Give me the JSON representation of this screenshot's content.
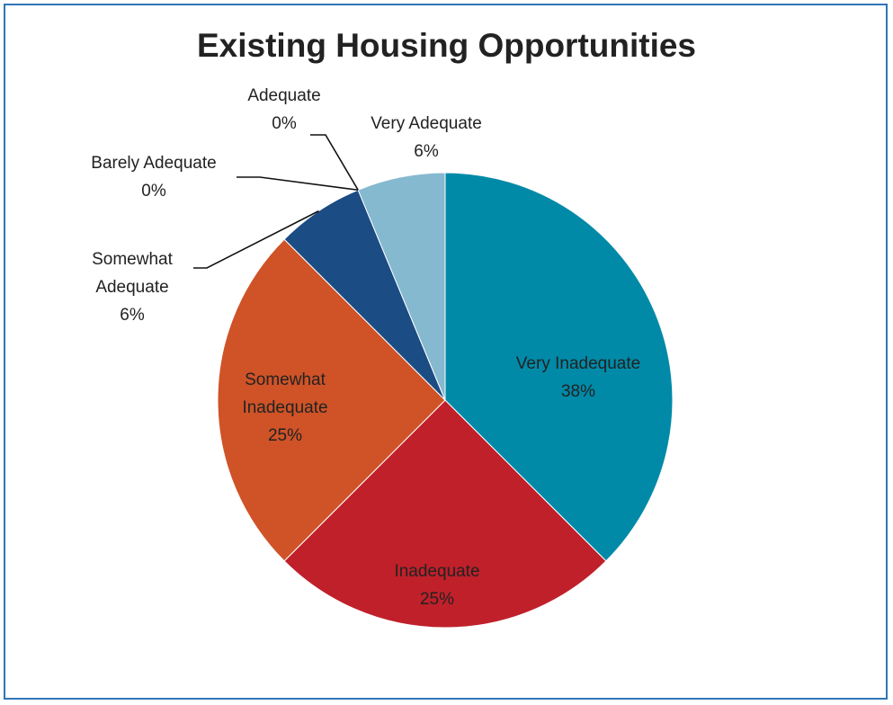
{
  "chart_data": {
    "type": "pie",
    "title": "Existing Housing Opportunities",
    "categories": [
      "Very Inadequate",
      "Inadequate",
      "Somewhat Inadequate",
      "Somewhat Adequate",
      "Barely Adequate",
      "Adequate",
      "Very Adequate"
    ],
    "values": [
      37.5,
      25,
      25,
      6.25,
      0,
      0,
      6.25
    ],
    "data_labels": [
      {
        "name": "Very Inadequate",
        "percent": "38%"
      },
      {
        "name": "Inadequate",
        "percent": "25%"
      },
      {
        "name": "Somewhat Inadequate",
        "percent": "25%"
      },
      {
        "name": "Somewhat Adequate",
        "percent": "6%"
      },
      {
        "name": "Barely Adequate",
        "percent": "0%"
      },
      {
        "name": "Adequate",
        "percent": "0%"
      },
      {
        "name": "Very Adequate",
        "percent": "6%"
      }
    ],
    "colors": [
      "#008aa8",
      "#c0202a",
      "#cf5327",
      "#1b4c84",
      "#6a8fb3",
      "#5a9ab8",
      "#85b9cf"
    ],
    "start": "12 o'clock",
    "direction": "clockwise",
    "legend": "none"
  }
}
